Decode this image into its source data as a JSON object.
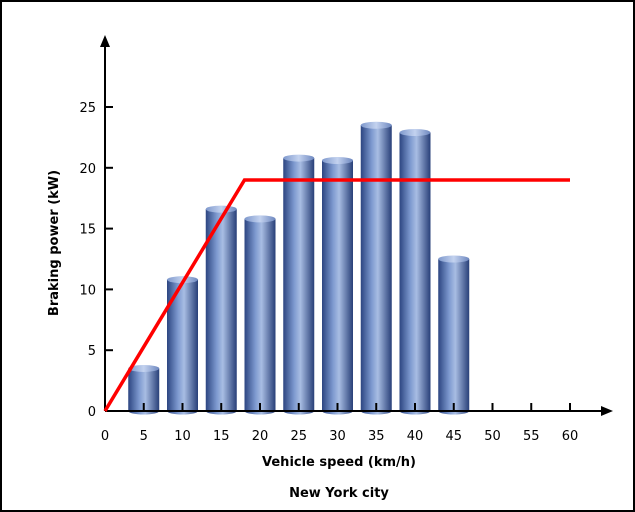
{
  "chart_data": {
    "type": "bar",
    "title": "",
    "xlabel": "Vehicle speed (km/h)",
    "ylabel": "Braking power (kW)",
    "caption": "New York city",
    "xlim": [
      0,
      60
    ],
    "ylim": [
      0,
      25
    ],
    "x_ticks": [
      0,
      5,
      10,
      15,
      20,
      25,
      30,
      35,
      40,
      45,
      50,
      55,
      60
    ],
    "y_ticks": [
      0,
      5,
      10,
      15,
      20,
      25
    ],
    "grid": false,
    "categories": [
      5,
      10,
      15,
      20,
      25,
      30,
      35,
      40,
      45
    ],
    "values": [
      3.5,
      10.8,
      16.6,
      15.8,
      20.8,
      20.6,
      23.5,
      22.9,
      12.5
    ],
    "bar_color": "#5a77b4",
    "line": {
      "x": [
        0,
        18,
        60
      ],
      "y": [
        0,
        19,
        19
      ],
      "color": "#ff0000"
    }
  }
}
